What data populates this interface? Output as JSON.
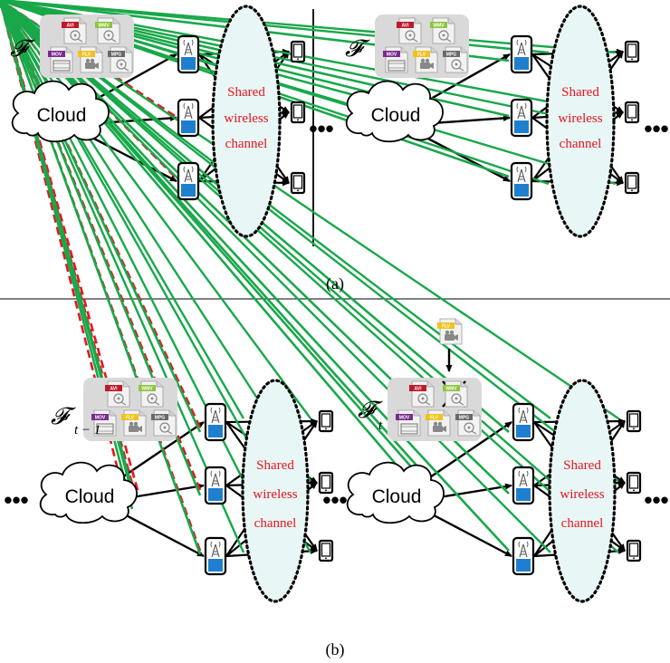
{
  "panels": {
    "a": {
      "caption": "(a)",
      "library_symbol": "𝓕",
      "left": {
        "cloud_label": "Cloud",
        "channel_lines": [
          "Shared",
          "wireless",
          "channel"
        ]
      },
      "right": {
        "cloud_label": "Cloud",
        "channel_lines": [
          "Shared",
          "wireless",
          "channel"
        ]
      }
    },
    "b": {
      "caption": "(b)",
      "left": {
        "library_symbol": "𝓕",
        "library_subscript": "t − 1",
        "cloud_label": "Cloud",
        "channel_lines": [
          "Shared",
          "wireless",
          "channel"
        ]
      },
      "right": {
        "library_symbol": "𝓕",
        "library_subscript": "t",
        "cloud_label": "Cloud",
        "channel_lines": [
          "Shared",
          "wireless",
          "channel"
        ],
        "incoming_file": "FLV"
      }
    }
  },
  "file_types": [
    "AVI",
    "WMV",
    "MOV",
    "FLV",
    "MPG"
  ],
  "colors": {
    "file_badges": {
      "AVI": "#c0192a",
      "WMV": "#8cc540",
      "MOV": "#7b2c8f",
      "FLV": "#f1c21b",
      "MPG": "#6a6a6a"
    },
    "red_arrow": "#e8141e",
    "green_arrow": "#18a84a",
    "channel_fill": "#e8f7f6",
    "cache_fill": "#1f7fcf",
    "library_panel": "#d9d9d9"
  },
  "icons": [
    "cloud-icon",
    "base-station-icon",
    "mobile-device-icon",
    "video-file-icon",
    "cross-mark-icon"
  ]
}
